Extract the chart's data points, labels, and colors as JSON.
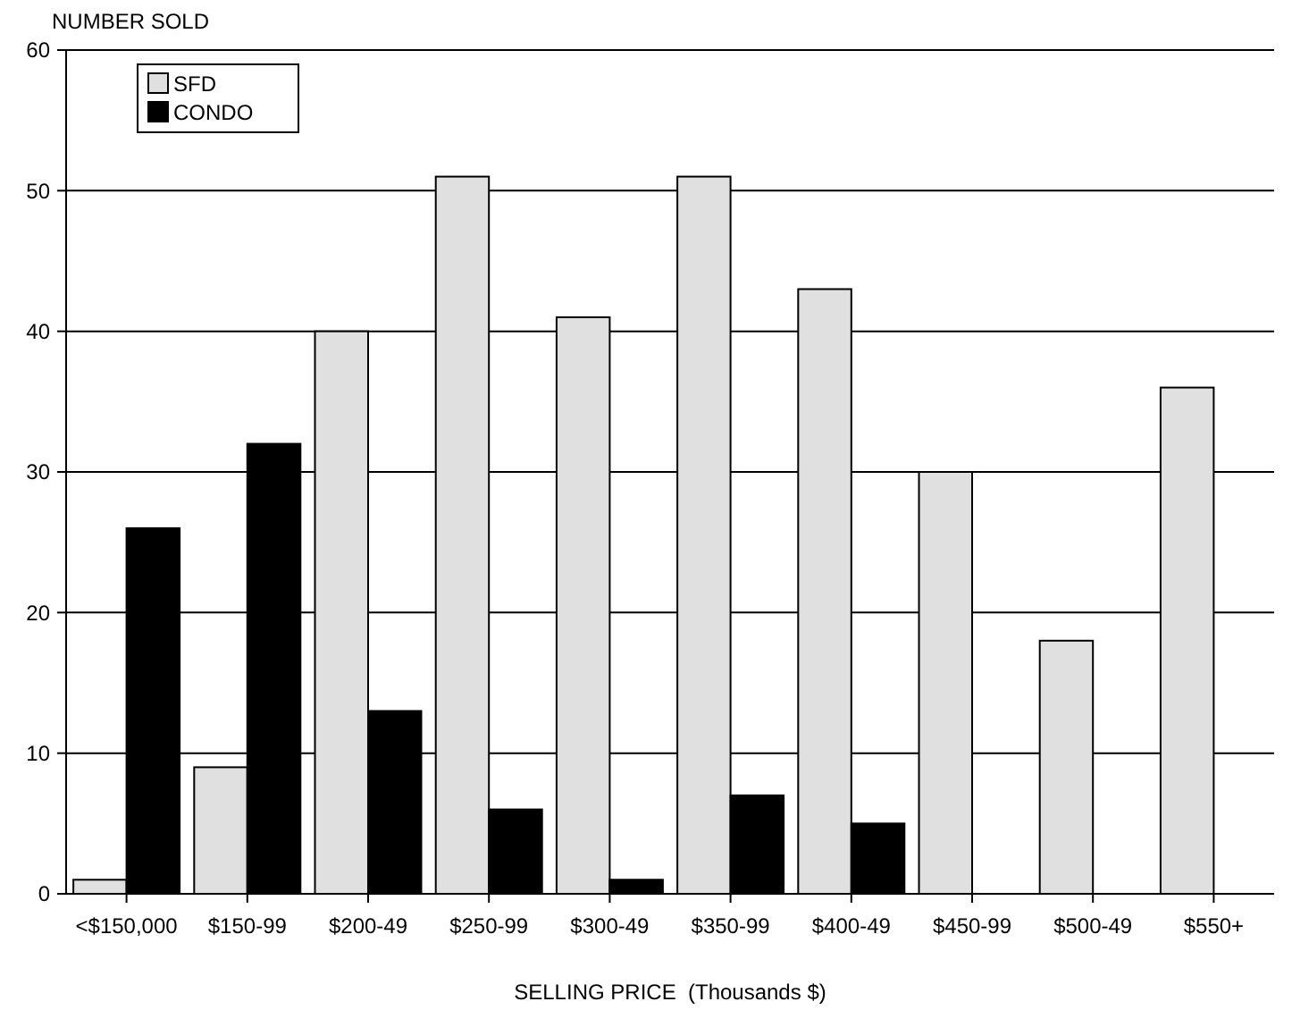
{
  "chart_data": {
    "type": "bar",
    "ylabel": "NUMBER SOLD",
    "xlabel": "SELLING PRICE  (Thousands $)",
    "categories": [
      "<$150,000",
      "$150-99",
      "$200-49",
      "$250-99",
      "$300-49",
      "$350-99",
      "$400-49",
      "$450-99",
      "$500-49",
      "$550+"
    ],
    "series": [
      {
        "name": "SFD",
        "color": "#e0e0e0",
        "values": [
          1,
          9,
          40,
          51,
          41,
          51,
          43,
          30,
          18,
          36
        ]
      },
      {
        "name": "CONDO",
        "color": "#000000",
        "values": [
          26,
          32,
          13,
          6,
          1,
          7,
          5,
          null,
          null,
          null
        ]
      }
    ],
    "ylim": [
      0,
      60
    ],
    "yticks": [
      0,
      10,
      20,
      30,
      40,
      50,
      60
    ],
    "grid": "y",
    "legend": "top left"
  }
}
